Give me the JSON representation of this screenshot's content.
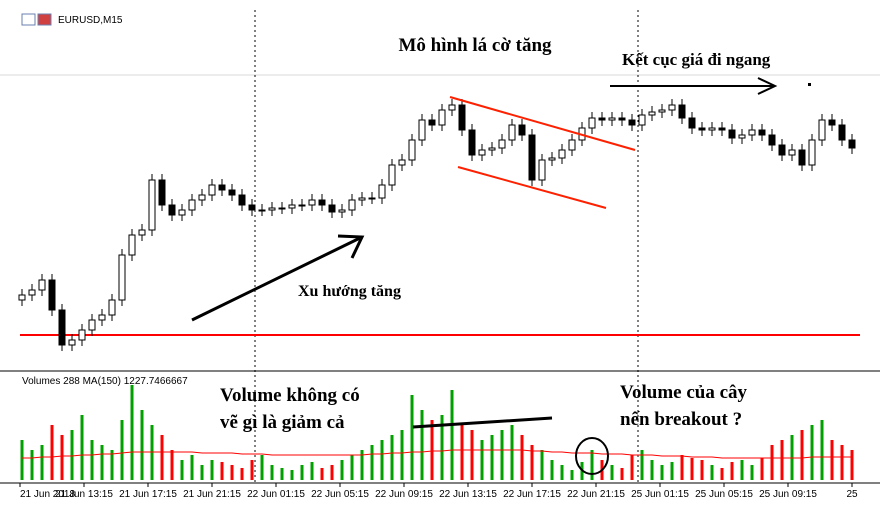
{
  "header": {
    "symbol": "EURUSD,M15"
  },
  "chart_data": [
    {
      "type": "candlestick",
      "title": "Mô hình lá cờ tăng",
      "annotations": [
        "Kết cục giá đi ngang",
        "Xu hướng tăng"
      ],
      "open": [
        70,
        75,
        80,
        90,
        60,
        25,
        30,
        40,
        50,
        55,
        70,
        115,
        135,
        140,
        190,
        165,
        155,
        160,
        170,
        175,
        185,
        180,
        175,
        165,
        160,
        160,
        162,
        162,
        165,
        165,
        170,
        165,
        158,
        160,
        170,
        172,
        172,
        185,
        205,
        210,
        230,
        250,
        245,
        260,
        265,
        240,
        215,
        220,
        222,
        230,
        245,
        235,
        190,
        210,
        212,
        220,
        230,
        242,
        252,
        250,
        252,
        250,
        245,
        255,
        258,
        260,
        265,
        252,
        242,
        240,
        242,
        240,
        232,
        235,
        240,
        235,
        225,
        215,
        220,
        205,
        230,
        250,
        245,
        230
      ],
      "high": [
        81,
        86,
        96,
        96,
        66,
        36,
        46,
        56,
        61,
        76,
        121,
        141,
        146,
        196,
        196,
        171,
        166,
        176,
        181,
        191,
        191,
        186,
        181,
        171,
        166,
        168,
        168,
        171,
        171,
        176,
        176,
        171,
        166,
        176,
        178,
        178,
        191,
        211,
        216,
        236,
        256,
        256,
        266,
        271,
        271,
        246,
        226,
        228,
        236,
        251,
        251,
        241,
        216,
        218,
        226,
        236,
        248,
        258,
        258,
        258,
        258,
        256,
        261,
        264,
        266,
        271,
        271,
        258,
        248,
        248,
        248,
        246,
        241,
        246,
        246,
        241,
        231,
        226,
        226,
        236,
        256,
        256,
        251,
        236
      ],
      "low": [
        64,
        69,
        74,
        54,
        19,
        19,
        24,
        34,
        44,
        49,
        64,
        109,
        129,
        134,
        159,
        149,
        149,
        154,
        164,
        169,
        174,
        169,
        159,
        154,
        154,
        154,
        156,
        156,
        159,
        159,
        159,
        152,
        152,
        154,
        164,
        166,
        166,
        179,
        199,
        204,
        224,
        239,
        239,
        254,
        234,
        209,
        209,
        214,
        216,
        224,
        229,
        184,
        184,
        204,
        206,
        214,
        224,
        236,
        244,
        244,
        244,
        239,
        239,
        249,
        252,
        254,
        246,
        236,
        234,
        234,
        234,
        226,
        226,
        229,
        229,
        219,
        209,
        209,
        199,
        199,
        224,
        239,
        224,
        216
      ],
      "close": [
        75,
        80,
        90,
        60,
        25,
        30,
        40,
        50,
        55,
        70,
        115,
        135,
        140,
        190,
        165,
        155,
        160,
        170,
        175,
        185,
        180,
        175,
        165,
        160,
        160,
        162,
        162,
        165,
        165,
        170,
        165,
        158,
        160,
        170,
        172,
        172,
        185,
        205,
        210,
        230,
        250,
        245,
        260,
        265,
        240,
        215,
        220,
        222,
        230,
        245,
        235,
        190,
        210,
        212,
        220,
        230,
        242,
        252,
        250,
        252,
        250,
        245,
        255,
        258,
        260,
        265,
        252,
        242,
        240,
        242,
        240,
        232,
        235,
        240,
        235,
        225,
        215,
        220,
        205,
        230,
        250,
        245,
        230,
        222
      ],
      "ylim": [
        0,
        290
      ],
      "hline": 35,
      "hline_color": "#ff0000",
      "candle_color": "#000000"
    },
    {
      "type": "volume",
      "title": "Volumes 288 MA(150) 1227.7466667",
      "annotations": [
        [
          "Volume không có",
          "vẽ gì là giảm cả"
        ],
        [
          "Volume của cây",
          "nến breakout ?"
        ]
      ],
      "values": [
        40,
        30,
        35,
        55,
        45,
        50,
        65,
        40,
        35,
        30,
        60,
        95,
        70,
        55,
        45,
        30,
        20,
        25,
        15,
        20,
        18,
        15,
        12,
        20,
        25,
        15,
        12,
        10,
        15,
        18,
        12,
        15,
        20,
        25,
        30,
        35,
        40,
        45,
        50,
        85,
        70,
        60,
        65,
        90,
        55,
        50,
        40,
        45,
        50,
        55,
        45,
        35,
        30,
        20,
        15,
        10,
        18,
        30,
        20,
        15,
        12,
        25,
        30,
        20,
        15,
        18,
        25,
        22,
        20,
        15,
        12,
        18,
        20,
        15,
        22,
        35,
        40,
        45,
        50,
        55,
        60,
        40,
        35,
        30
      ],
      "ma": [
        22,
        22,
        23,
        23,
        24,
        24,
        25,
        25,
        26,
        26,
        27,
        28,
        28,
        28,
        28,
        28,
        28,
        28,
        27,
        27,
        27,
        27,
        26,
        26,
        26,
        25,
        25,
        25,
        25,
        25,
        25,
        25,
        25,
        25,
        25,
        26,
        26,
        27,
        27,
        28,
        28,
        29,
        29,
        30,
        30,
        30,
        30,
        30,
        30,
        30,
        30,
        29,
        29,
        28,
        28,
        27,
        27,
        27,
        26,
        26,
        26,
        25,
        25,
        25,
        24,
        24,
        24,
        23,
        23,
        23,
        22,
        22,
        22,
        22,
        22,
        22,
        22,
        22,
        22,
        23,
        23,
        23,
        23,
        23
      ],
      "ylim": [
        0,
        100
      ],
      "up_color": "#00a000",
      "down_color": "#ff0000",
      "ma_color": "#ff0000"
    }
  ],
  "time_axis": [
    "21 Jun 2018",
    "21 Jun 13:15",
    "21 Jun 17:15",
    "21 Jun 21:15",
    "22 Jun 01:15",
    "22 Jun 05:15",
    "22 Jun 09:15",
    "22 Jun 13:15",
    "22 Jun 17:15",
    "22 Jun 21:15",
    "25 Jun 01:15",
    "25 Jun 05:15",
    "25 Jun 09:15",
    "25"
  ]
}
